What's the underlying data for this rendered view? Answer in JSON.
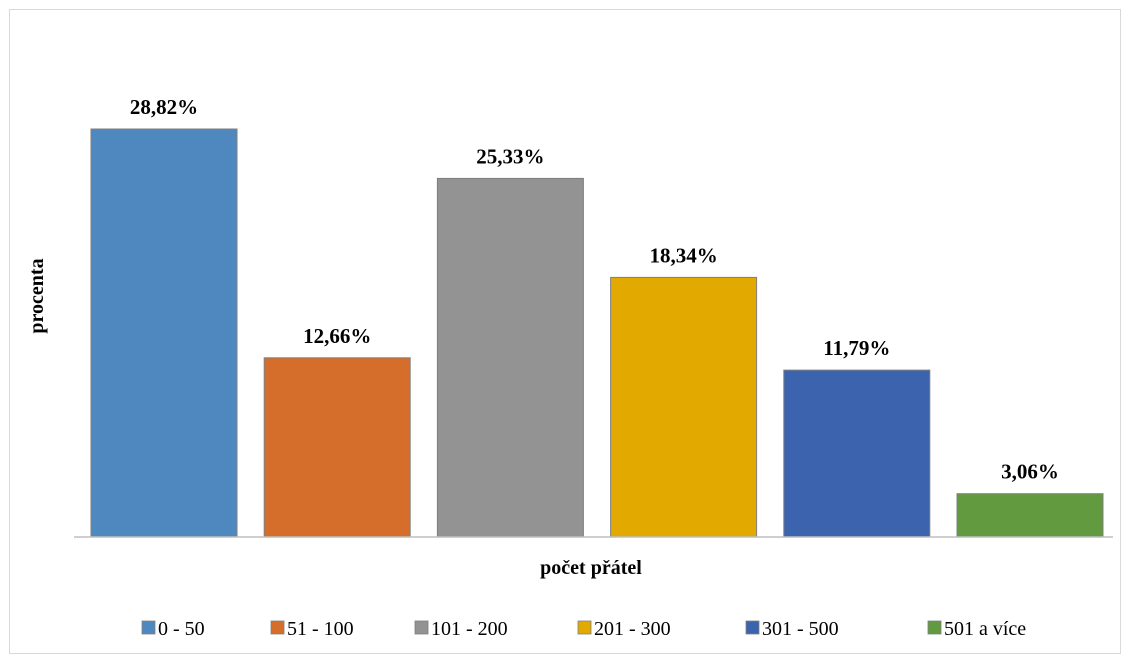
{
  "chart_data": {
    "type": "bar",
    "title": "",
    "xlabel": "počet přátel",
    "ylabel": "procenta",
    "categories": [
      "0 - 50",
      "51 - 100",
      "101 - 200",
      "201 - 300",
      "301 - 500",
      "501 a více"
    ],
    "values": [
      28.82,
      12.66,
      25.33,
      18.34,
      11.79,
      3.06
    ],
    "data_labels": [
      "28,82%",
      "12,66%",
      "25,33%",
      "18,34%",
      "11,79%",
      "3,06%"
    ],
    "colors": [
      "#4f88bf",
      "#d46e2a",
      "#939393",
      "#e2a900",
      "#3c63ad",
      "#629a3f"
    ],
    "ylim": [
      0,
      35
    ],
    "grid": false,
    "legend": "bottom"
  }
}
